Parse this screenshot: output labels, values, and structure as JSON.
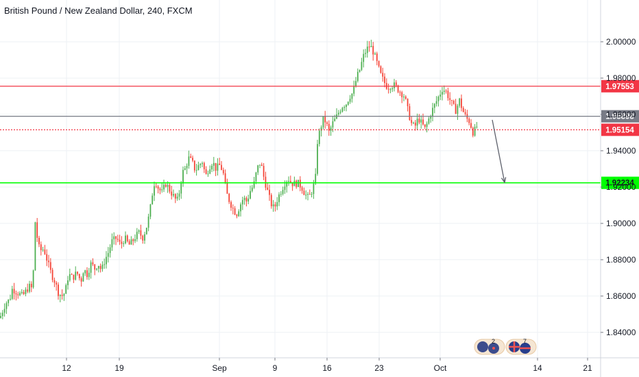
{
  "title": "British Pound / New Zealand Dollar, 240, FXCM",
  "colors": {
    "up": "#26a69a",
    "down": "#ef5350",
    "up_candle": "#4caf50",
    "down_candle": "#f44336",
    "resistance": "#f23645",
    "support": "#00ff00",
    "current_line": "#787b86",
    "grid": "#eef0f4",
    "axis_text": "#131722"
  },
  "chart_data": {
    "type": "candlestick",
    "title": "British Pound / New Zealand Dollar, 240, FXCM",
    "symbol": "GBPNZD",
    "interval": "240",
    "source": "FXCM",
    "x_labels": [
      "12",
      "19",
      "Sep",
      "9",
      "16",
      "23",
      "Oct",
      "14",
      "21"
    ],
    "y_ticks": [
      "2.00000",
      "1.98000",
      "1.96000",
      "1.94000",
      "1.92000",
      "1.90000",
      "1.88000",
      "1.86000",
      "1.84000"
    ],
    "ylim": [
      1.826,
      2.023
    ],
    "grid": true,
    "horizontal_lines": [
      {
        "label": "1.97553",
        "value": 1.97553,
        "style": "solid",
        "color_key": "resistance"
      },
      {
        "label": "1.95898",
        "value": 1.95898,
        "style": "solid",
        "color_key": "current_line"
      },
      {
        "label": "1.95154",
        "value": 1.95154,
        "style": "dotted",
        "color_key": "resistance"
      },
      {
        "label": "1.92234",
        "value": 1.92234,
        "style": "solid",
        "color_key": "support"
      }
    ],
    "projection_arrow": {
      "from": 1.957,
      "to": 1.9225
    },
    "price_path": [
      [
        0,
        1.848
      ],
      [
        3,
        1.851
      ],
      [
        8,
        1.856
      ],
      [
        14,
        1.858
      ],
      [
        18,
        1.864
      ],
      [
        25,
        1.862
      ],
      [
        33,
        1.86
      ],
      [
        40,
        1.864
      ],
      [
        45,
        1.866
      ],
      [
        48,
        1.86
      ],
      [
        50,
        1.905
      ],
      [
        55,
        1.89
      ],
      [
        58,
        1.885
      ],
      [
        64,
        1.886
      ],
      [
        70,
        1.878
      ],
      [
        75,
        1.872
      ],
      [
        80,
        1.868
      ],
      [
        85,
        1.862
      ],
      [
        90,
        1.86
      ],
      [
        95,
        1.862
      ],
      [
        100,
        1.872
      ],
      [
        106,
        1.87
      ],
      [
        112,
        1.873
      ],
      [
        118,
        1.868
      ],
      [
        122,
        1.875
      ],
      [
        127,
        1.872
      ],
      [
        133,
        1.878
      ],
      [
        138,
        1.875
      ],
      [
        143,
        1.878
      ],
      [
        148,
        1.874
      ],
      [
        153,
        1.88
      ],
      [
        158,
        1.884
      ],
      [
        163,
        1.89
      ],
      [
        170,
        1.892
      ],
      [
        176,
        1.888
      ],
      [
        182,
        1.892
      ],
      [
        188,
        1.888
      ],
      [
        193,
        1.89
      ],
      [
        198,
        1.893
      ],
      [
        203,
        1.895
      ],
      [
        208,
        1.892
      ],
      [
        213,
        1.897
      ],
      [
        218,
        1.905
      ],
      [
        222,
        1.916
      ],
      [
        226,
        1.924
      ],
      [
        230,
        1.92
      ],
      [
        236,
        1.917
      ],
      [
        242,
        1.922
      ],
      [
        248,
        1.918
      ],
      [
        253,
        1.915
      ],
      [
        258,
        1.912
      ],
      [
        262,
        1.918
      ],
      [
        266,
        1.928
      ],
      [
        270,
        1.93
      ],
      [
        275,
        1.936
      ],
      [
        280,
        1.934
      ],
      [
        285,
        1.929
      ],
      [
        290,
        1.932
      ],
      [
        295,
        1.934
      ],
      [
        300,
        1.926
      ],
      [
        305,
        1.931
      ],
      [
        310,
        1.934
      ],
      [
        315,
        1.93
      ],
      [
        320,
        1.932
      ],
      [
        325,
        1.929
      ],
      [
        330,
        1.917
      ],
      [
        335,
        1.912
      ],
      [
        340,
        1.908
      ],
      [
        345,
        1.905
      ],
      [
        350,
        1.91
      ],
      [
        355,
        1.914
      ],
      [
        360,
        1.912
      ],
      [
        365,
        1.918
      ],
      [
        370,
        1.921
      ],
      [
        375,
        1.93
      ],
      [
        380,
        1.934
      ],
      [
        385,
        1.925
      ],
      [
        390,
        1.918
      ],
      [
        395,
        1.911
      ],
      [
        400,
        1.908
      ],
      [
        405,
        1.914
      ],
      [
        410,
        1.918
      ],
      [
        415,
        1.922
      ],
      [
        420,
        1.925
      ],
      [
        425,
        1.922
      ],
      [
        430,
        1.922
      ],
      [
        435,
        1.922
      ],
      [
        440,
        1.92
      ],
      [
        445,
        1.916
      ],
      [
        450,
        1.914
      ],
      [
        455,
        1.918
      ],
      [
        460,
        1.924
      ],
      [
        463,
        1.945
      ],
      [
        467,
        1.952
      ],
      [
        472,
        1.958
      ],
      [
        476,
        1.955
      ],
      [
        480,
        1.95
      ],
      [
        485,
        1.955
      ],
      [
        490,
        1.958
      ],
      [
        495,
        1.962
      ],
      [
        500,
        1.965
      ],
      [
        505,
        1.966
      ],
      [
        510,
        1.97
      ],
      [
        515,
        1.972
      ],
      [
        520,
        1.98
      ],
      [
        525,
        1.985
      ],
      [
        530,
        1.992
      ],
      [
        535,
        1.996
      ],
      [
        540,
        1.998
      ],
      [
        545,
        1.994
      ],
      [
        550,
        1.988
      ],
      [
        555,
        1.982
      ],
      [
        560,
        1.978
      ],
      [
        565,
        1.975
      ],
      [
        570,
        1.976
      ],
      [
        575,
        1.976
      ],
      [
        580,
        1.974
      ],
      [
        585,
        1.972
      ],
      [
        590,
        1.97
      ],
      [
        595,
        1.962
      ],
      [
        600,
        1.955
      ],
      [
        605,
        1.953
      ],
      [
        610,
        1.958
      ],
      [
        615,
        1.955
      ],
      [
        620,
        1.952
      ],
      [
        625,
        1.957
      ],
      [
        630,
        1.962
      ],
      [
        635,
        1.966
      ],
      [
        640,
        1.97
      ],
      [
        645,
        1.974
      ],
      [
        650,
        1.973
      ],
      [
        655,
        1.969
      ],
      [
        660,
        1.965
      ],
      [
        665,
        1.962
      ],
      [
        670,
        1.968
      ],
      [
        675,
        1.962
      ],
      [
        680,
        1.958
      ],
      [
        685,
        1.956
      ],
      [
        690,
        1.95
      ],
      [
        694,
        1.952
      ],
      [
        697,
        1.955
      ]
    ]
  },
  "events": [
    {
      "count": "2",
      "flag": "nz"
    },
    {
      "count": "7",
      "flag": "uk"
    }
  ]
}
